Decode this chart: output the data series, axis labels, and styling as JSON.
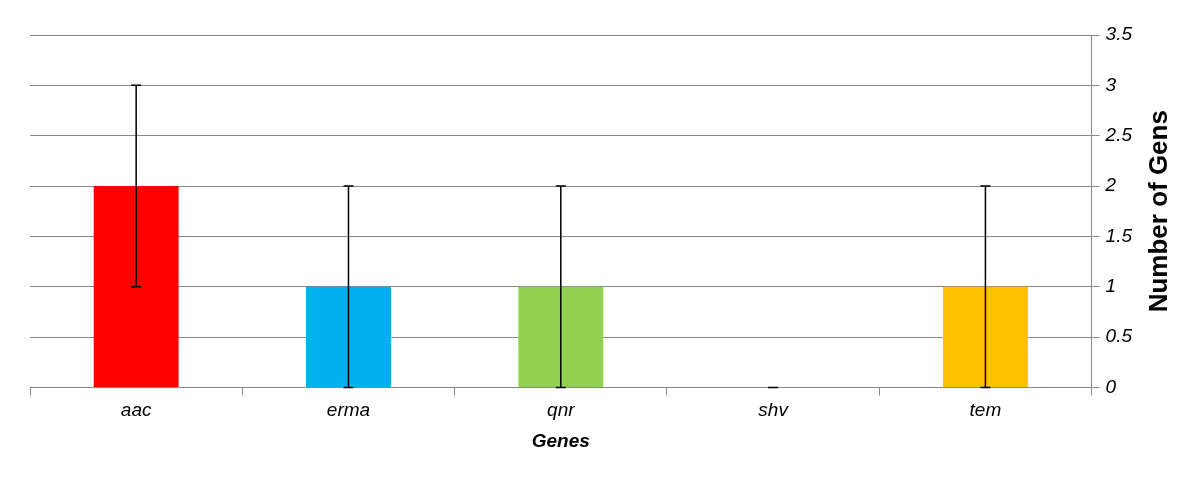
{
  "chart_data": {
    "type": "bar",
    "xlabel": "Genes",
    "ylabel": "Number of Gens",
    "categories": [
      "aac",
      "erma",
      "qnr",
      "shv",
      "tem"
    ],
    "values": [
      2,
      1,
      1,
      0,
      1
    ],
    "colors": [
      "#ff0000",
      "#00b0f0",
      "#92d050",
      "#7f7f7f",
      "#ffc000"
    ],
    "errors": [
      1,
      1,
      1,
      0,
      1
    ],
    "ylim": [
      0,
      3.5
    ],
    "yticks": [
      0,
      0.5,
      1,
      1.5,
      2,
      2.5,
      3,
      3.5
    ],
    "grid": "y",
    "legend": false
  }
}
